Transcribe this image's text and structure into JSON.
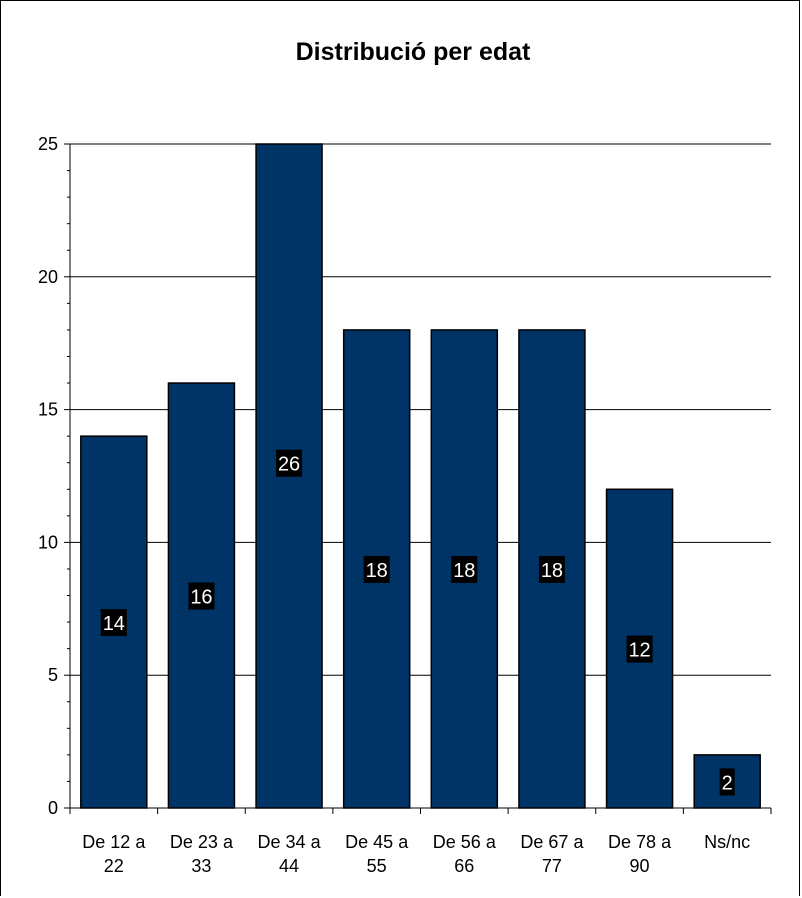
{
  "chart_data": {
    "type": "bar",
    "title": "Distribució per edat",
    "xlabel": "",
    "ylabel": "",
    "categories": [
      [
        "De 12 a",
        "22"
      ],
      [
        "De 23 a",
        "33"
      ],
      [
        "De 34 a",
        "44"
      ],
      [
        "De 45 a",
        "55"
      ],
      [
        "De 56 a",
        "66"
      ],
      [
        "De 67 a",
        "77"
      ],
      [
        "De 78 a",
        "90"
      ],
      [
        "Ns/nc"
      ]
    ],
    "values": [
      14,
      16,
      26,
      18,
      18,
      18,
      12,
      2
    ],
    "ylim": [
      0,
      25
    ],
    "yticks": [
      0,
      5,
      10,
      15,
      20,
      25
    ],
    "grid": true,
    "legend": "none",
    "colors": {
      "bar": "#003366",
      "bar_edge": "#000000",
      "label_bg": "#000000",
      "label_text": "#ffffff"
    }
  }
}
